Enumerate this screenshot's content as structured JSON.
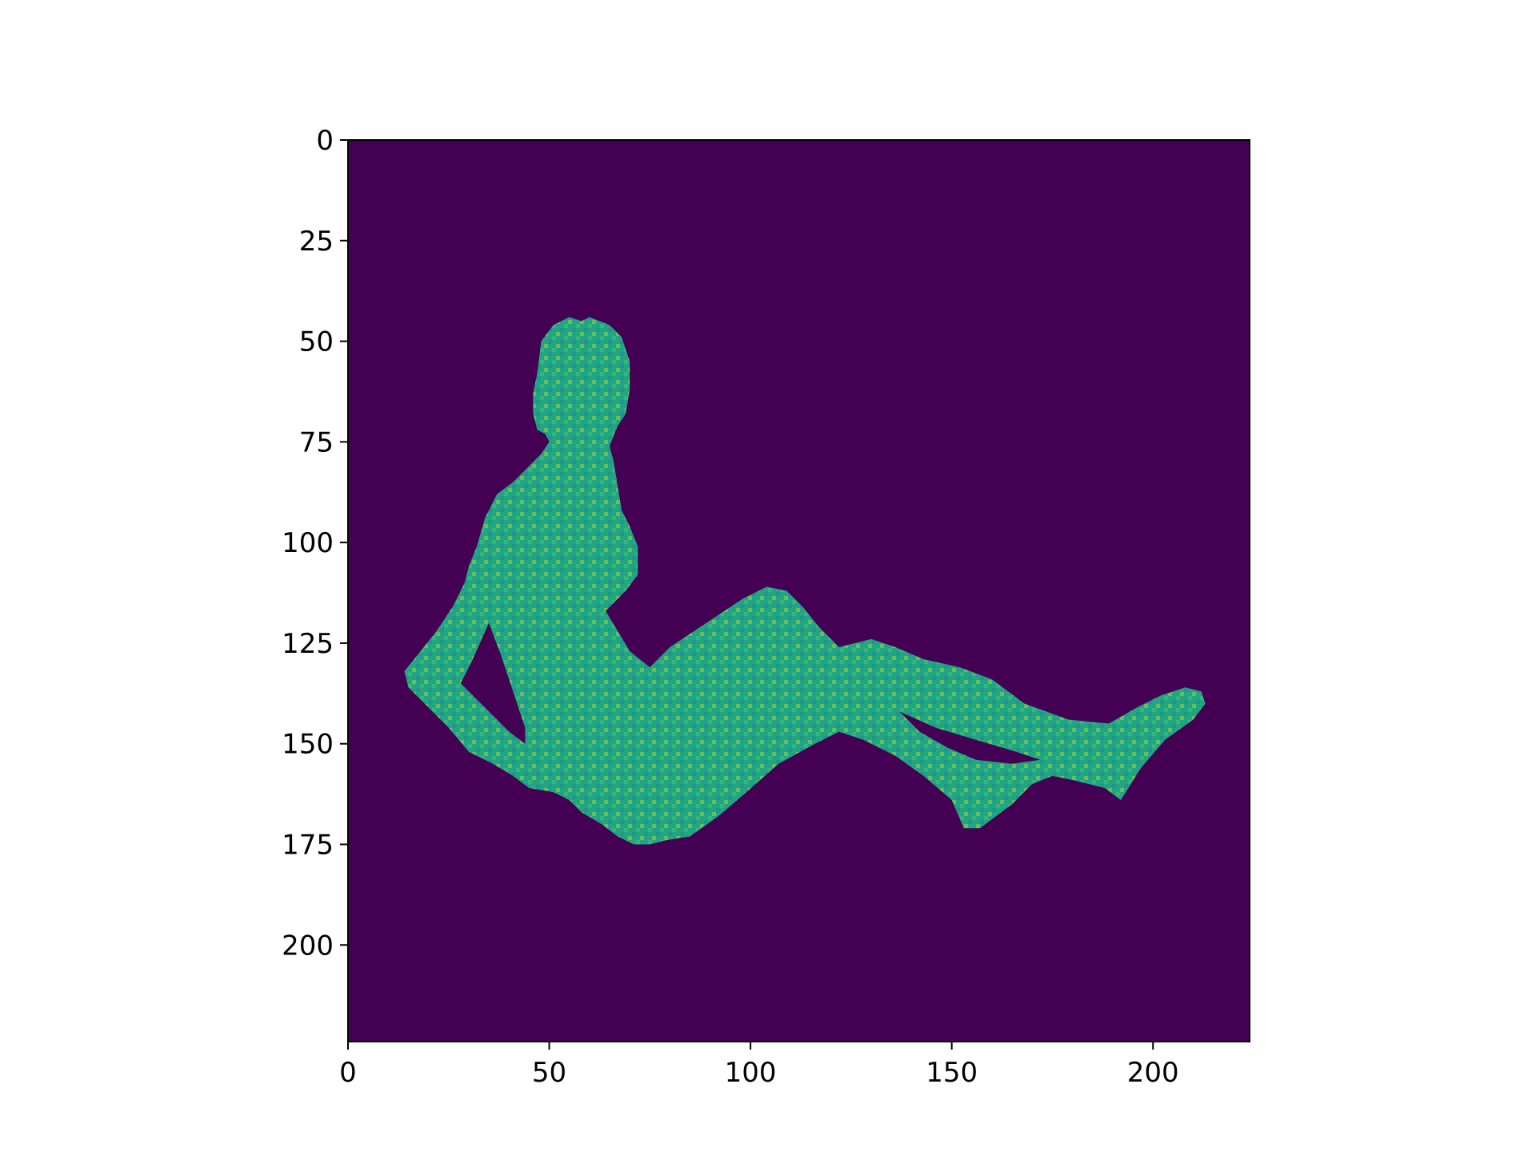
{
  "chart_data": {
    "type": "heatmap",
    "image_size": [
      224,
      224
    ],
    "xlim": [
      0,
      224
    ],
    "ylim": [
      224,
      0
    ],
    "xticks": [
      0,
      50,
      100,
      150,
      200
    ],
    "yticks": [
      0,
      25,
      50,
      75,
      100,
      125,
      150,
      175,
      200
    ],
    "xtick_labels": [
      "0",
      "50",
      "100",
      "150",
      "200"
    ],
    "ytick_labels": [
      "0",
      "25",
      "50",
      "75",
      "100",
      "125",
      "150",
      "175",
      "200"
    ],
    "grid": false,
    "colors": {
      "background": "#440154",
      "body": "#21a685",
      "speckle_light": "#4ac16d",
      "speckle_bright": "#bddf26",
      "speckle_dark": "#2a788e"
    },
    "silhouette": {
      "head": [
        [
          60,
          44
        ],
        [
          58,
          45
        ],
        [
          55,
          44
        ],
        [
          51,
          46
        ],
        [
          48,
          50
        ],
        [
          47,
          58
        ],
        [
          46,
          63
        ],
        [
          46,
          68
        ],
        [
          47,
          72
        ],
        [
          49,
          73
        ],
        [
          50,
          75
        ],
        [
          48,
          78
        ],
        [
          44,
          82
        ],
        [
          41,
          85
        ],
        [
          37,
          88
        ],
        [
          34,
          94
        ],
        [
          32,
          101
        ],
        [
          30,
          106
        ],
        [
          29,
          110
        ],
        [
          26,
          116
        ],
        [
          22,
          122
        ],
        [
          18,
          127
        ],
        [
          14,
          132
        ],
        [
          15,
          136
        ],
        [
          19,
          140
        ],
        [
          25,
          146
        ],
        [
          30,
          152
        ],
        [
          36,
          155
        ],
        [
          41,
          158
        ],
        [
          45,
          161
        ],
        [
          51,
          162
        ],
        [
          55,
          164
        ],
        [
          58,
          167
        ],
        [
          63,
          170
        ],
        [
          67,
          173
        ],
        [
          71,
          175
        ],
        [
          75,
          175
        ],
        [
          79,
          174
        ],
        [
          85,
          173
        ],
        [
          92,
          168
        ],
        [
          99,
          162
        ],
        [
          107,
          155
        ],
        [
          116,
          150
        ],
        [
          122,
          147
        ],
        [
          128,
          149
        ],
        [
          136,
          153
        ],
        [
          143,
          158
        ],
        [
          150,
          164
        ],
        [
          153,
          171
        ],
        [
          157,
          171
        ],
        [
          165,
          165
        ],
        [
          170,
          160
        ],
        [
          175,
          158
        ],
        [
          180,
          159
        ],
        [
          188,
          161
        ],
        [
          192,
          164
        ],
        [
          197,
          156
        ],
        [
          203,
          149
        ],
        [
          210,
          144
        ],
        [
          213,
          140
        ],
        [
          212,
          137
        ],
        [
          208,
          136
        ],
        [
          202,
          138
        ],
        [
          196,
          141
        ],
        [
          189,
          145
        ],
        [
          179,
          144
        ],
        [
          168,
          140
        ],
        [
          160,
          134
        ],
        [
          152,
          131
        ],
        [
          143,
          129
        ],
        [
          136,
          126
        ],
        [
          130,
          124
        ],
        [
          126,
          125
        ],
        [
          122,
          126
        ],
        [
          117,
          121
        ],
        [
          113,
          116
        ],
        [
          109,
          112
        ],
        [
          104,
          111
        ],
        [
          98,
          114
        ],
        [
          92,
          118
        ],
        [
          86,
          122
        ],
        [
          80,
          126
        ],
        [
          75,
          131
        ],
        [
          70,
          127
        ],
        [
          67,
          122
        ],
        [
          64,
          117
        ],
        [
          69,
          112
        ],
        [
          72,
          108
        ],
        [
          72,
          101
        ],
        [
          70,
          96
        ],
        [
          68,
          92
        ],
        [
          67,
          86
        ],
        [
          66,
          80
        ],
        [
          65,
          76
        ],
        [
          67,
          71
        ],
        [
          69,
          68
        ],
        [
          70,
          62
        ],
        [
          70,
          55
        ],
        [
          68,
          49
        ],
        [
          65,
          46
        ]
      ],
      "arm_gap": [
        [
          35,
          120
        ],
        [
          38,
          128
        ],
        [
          41,
          137
        ],
        [
          44,
          146
        ],
        [
          44,
          150
        ],
        [
          40,
          147
        ],
        [
          34,
          141
        ],
        [
          28,
          135
        ],
        [
          31,
          129
        ]
      ],
      "leg_gap": [
        [
          137,
          142
        ],
        [
          146,
          146
        ],
        [
          156,
          149
        ],
        [
          166,
          152
        ],
        [
          172,
          154
        ],
        [
          165,
          155
        ],
        [
          156,
          154
        ],
        [
          149,
          151
        ],
        [
          142,
          147
        ]
      ]
    }
  }
}
